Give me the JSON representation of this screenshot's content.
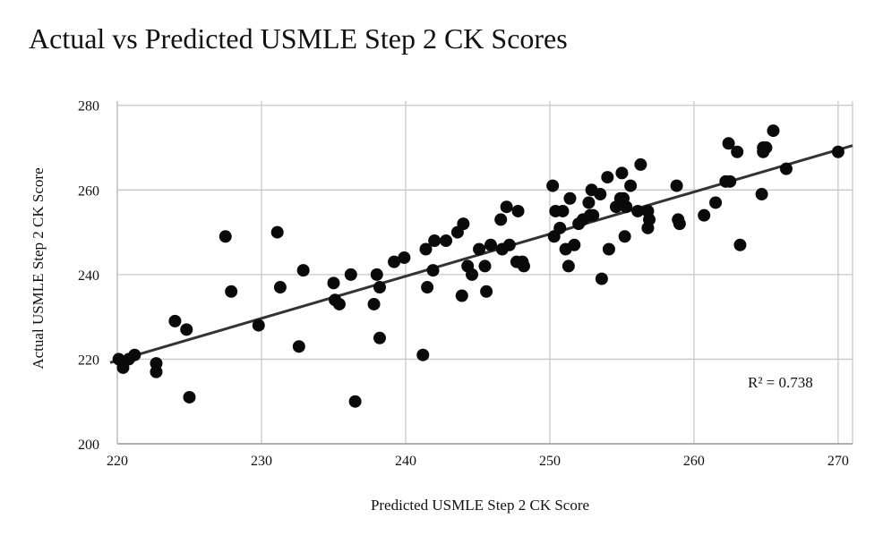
{
  "chart_data": {
    "type": "scatter",
    "title": "Actual vs Predicted USMLE Step 2 CK Scores",
    "xlabel": "Predicted USMLE Step 2 CK Score",
    "ylabel": "Actual USMLE Step 2 CK Score",
    "xlim": [
      220,
      271
    ],
    "ylim": [
      200,
      281
    ],
    "xticks": [
      "220",
      "230",
      "240",
      "250",
      "260",
      "270"
    ],
    "yticks": [
      "200",
      "220",
      "240",
      "260",
      "280"
    ],
    "xtick_values": [
      220,
      230,
      240,
      250,
      260,
      270
    ],
    "ytick_values": [
      200,
      220,
      240,
      260,
      280
    ],
    "grid": true,
    "point_color": "#0a0a0a",
    "trendline_color": "#333333",
    "grid_color": "#c8c8c8",
    "annotation": "R² = 0.738",
    "trendline": {
      "x": [
        220,
        271
      ],
      "y": [
        219.5,
        270.5
      ]
    },
    "points": {
      "x": [
        220.1,
        220.4,
        220.8,
        221.2,
        222.7,
        222.7,
        224.0,
        224.8,
        225.0,
        227.5,
        227.9,
        229.8,
        231.1,
        231.3,
        232.6,
        232.9,
        235.0,
        235.1,
        235.4,
        236.2,
        236.5,
        237.8,
        238.0,
        238.2,
        238.2,
        239.2,
        239.9,
        241.2,
        241.4,
        241.5,
        241.9,
        242.0,
        242.8,
        243.6,
        243.9,
        244.0,
        244.3,
        244.6,
        245.1,
        245.5,
        245.6,
        245.9,
        246.6,
        246.7,
        247.0,
        247.2,
        247.7,
        247.8,
        248.1,
        248.2,
        250.2,
        250.3,
        250.4,
        250.7,
        250.9,
        251.1,
        251.3,
        251.4,
        251.7,
        252.0,
        252.3,
        252.7,
        252.8,
        252.9,
        253.0,
        253.5,
        253.6,
        254.0,
        254.1,
        254.6,
        254.9,
        255.0,
        255.1,
        255.2,
        255.3,
        255.6,
        256.1,
        256.3,
        256.8,
        256.8,
        256.9,
        258.8,
        258.9,
        259.0,
        260.7,
        261.5,
        262.2,
        262.4,
        262.5,
        263.0,
        263.2,
        264.7,
        264.8,
        264.8,
        265.0,
        265.5,
        266.4,
        270.0
      ],
      "y": [
        220,
        218,
        220,
        221,
        219,
        217,
        229,
        227,
        211,
        249,
        236,
        228,
        250,
        237,
        223,
        241,
        238,
        234,
        233,
        240,
        210,
        233,
        240,
        225,
        237,
        243,
        244,
        221,
        246,
        237,
        241,
        248,
        248,
        250,
        235,
        252,
        242,
        240,
        246,
        242,
        236,
        247,
        253,
        246,
        256,
        247,
        243,
        255,
        243,
        242,
        261,
        249,
        255,
        251,
        255,
        246,
        242,
        258,
        247,
        252,
        253,
        257,
        254,
        260,
        254,
        259,
        239,
        263,
        246,
        256,
        258,
        264,
        258,
        249,
        256,
        261,
        255,
        266,
        251,
        255,
        253,
        261,
        253,
        252,
        254,
        257,
        262,
        271,
        262,
        269,
        247,
        259,
        269,
        270,
        270,
        274,
        265,
        269
      ]
    }
  }
}
